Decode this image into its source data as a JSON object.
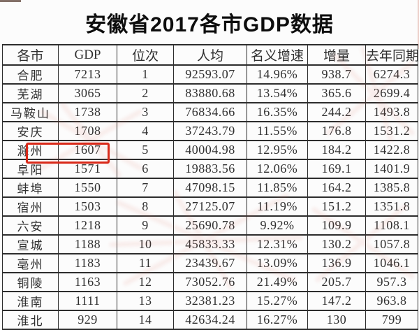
{
  "page": {
    "title": "安徽省2017各市GDP数据"
  },
  "chart_data": {
    "type": "table",
    "title": "安徽省2017各市GDP数据",
    "columns": [
      "各市",
      "GDP",
      "位次",
      "人均",
      "名义增速",
      "增量",
      "去年同期"
    ],
    "column_keys": [
      "city",
      "gdp",
      "rank",
      "per-capita",
      "nominal-growth",
      "increment",
      "last-year-same-period"
    ],
    "rows": [
      [
        "合肥",
        "7213",
        "1",
        "92593.07",
        "14.96%",
        "938.7",
        "6274.3"
      ],
      [
        "芜湖",
        "3065",
        "2",
        "83880.68",
        "13.54%",
        "365.6",
        "2699.4"
      ],
      [
        "马鞍山",
        "1738",
        "3",
        "76834.66",
        "16.35%",
        "244.2",
        "1493.8"
      ],
      [
        "安庆",
        "1708",
        "4",
        "37243.79",
        "11.55%",
        "176.8",
        "1531.2"
      ],
      [
        "滁州",
        "1607",
        "5",
        "40004.98",
        "12.95%",
        "184.2",
        "1422.8"
      ],
      [
        "阜阳",
        "1571",
        "6",
        "19883.56",
        "12.06%",
        "169.1",
        "1401.9"
      ],
      [
        "蚌埠",
        "1550",
        "7",
        "47098.15",
        "11.85%",
        "164.2",
        "1385.8"
      ],
      [
        "宿州",
        "1503",
        "8",
        "27125.07",
        "11.19%",
        "151.2",
        "1351.8"
      ],
      [
        "六安",
        "1218",
        "9",
        "25690.78",
        "9.92%",
        "109.9",
        "1108.1"
      ],
      [
        "宣城",
        "1188",
        "10",
        "45833.33",
        "12.31%",
        "130.2",
        "1057.8"
      ],
      [
        "亳州",
        "1183",
        "11",
        "23439.67",
        "13.09%",
        "136.9",
        "1046.1"
      ],
      [
        "铜陵",
        "1163",
        "12",
        "73052.76",
        "21.49%",
        "205.7",
        "957.3"
      ],
      [
        "淮南",
        "1111",
        "13",
        "32381.23",
        "15.27%",
        "147.2",
        "963.8"
      ],
      [
        "淮北",
        "929",
        "14",
        "42634.24",
        "16.27%",
        "130",
        "799"
      ]
    ],
    "highlight": {
      "city": "阜阳",
      "highlighted_columns": [
        "各市",
        "GDP"
      ],
      "color": "#d92a1a"
    }
  }
}
